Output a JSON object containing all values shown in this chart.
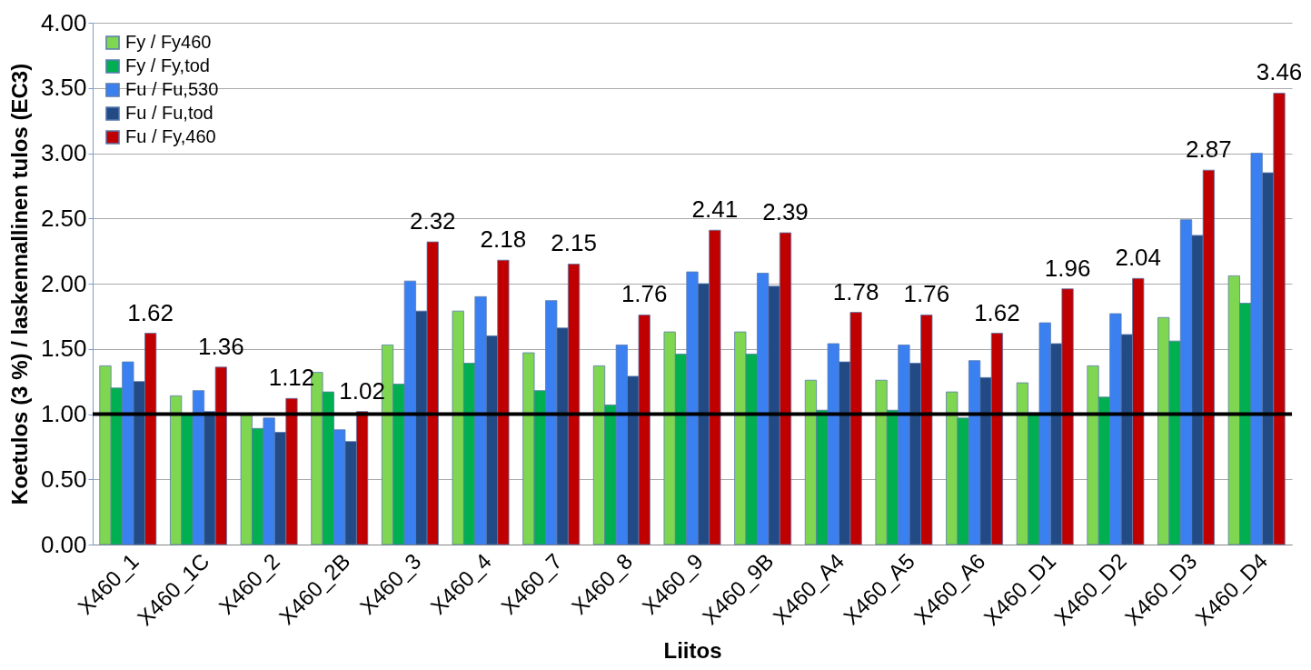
{
  "chart_data": {
    "type": "bar",
    "xlabel": "Liitos",
    "ylabel": "Koetulos (3 %) / laskennallinen tulos (EC3)",
    "categories": [
      "X460_1",
      "X460_1C",
      "X460_2",
      "X460_2B",
      "X460_3",
      "X460_4",
      "X460_7",
      "X460_8",
      "X460_9",
      "X460_9B",
      "X460_A4",
      "X460_A5",
      "X460_A6",
      "X460_D1",
      "X460_D2",
      "X460_D3",
      "X460_D4"
    ],
    "series": [
      {
        "name": "Fy / Fy460",
        "color": "#7fd650",
        "values": [
          1.37,
          1.14,
          1.0,
          1.32,
          1.53,
          1.79,
          1.47,
          1.37,
          1.63,
          1.63,
          1.26,
          1.26,
          1.17,
          1.24,
          1.37,
          1.74,
          2.06
        ]
      },
      {
        "name": "Fy / Fy,tod",
        "color": "#00b050",
        "values": [
          1.2,
          1.0,
          0.89,
          1.17,
          1.23,
          1.39,
          1.18,
          1.07,
          1.46,
          1.46,
          1.03,
          1.03,
          0.97,
          1.01,
          1.13,
          1.56,
          1.85
        ]
      },
      {
        "name": "Fu / Fu,530",
        "color": "#3a80f0",
        "values": [
          1.4,
          1.18,
          0.97,
          0.88,
          2.02,
          1.9,
          1.87,
          1.53,
          2.09,
          2.08,
          1.54,
          1.53,
          1.41,
          1.7,
          1.77,
          2.49,
          3.0
        ]
      },
      {
        "name": "Fu / Fu,tod",
        "color": "#224a85",
        "values": [
          1.25,
          1.02,
          0.86,
          0.79,
          1.79,
          1.6,
          1.66,
          1.29,
          2.0,
          1.98,
          1.4,
          1.39,
          1.28,
          1.54,
          1.61,
          2.37,
          2.85
        ]
      },
      {
        "name": "Fu / Fy,460",
        "color": "#c00000",
        "values": [
          1.62,
          1.36,
          1.12,
          1.02,
          2.32,
          2.18,
          2.15,
          1.76,
          2.41,
          2.39,
          1.78,
          1.76,
          1.62,
          1.96,
          2.04,
          2.87,
          3.46
        ],
        "value_labels": [
          "1.62",
          "1.36",
          "1.12",
          "1.02",
          "2.32",
          "2.18",
          "2.15",
          "1.76",
          "2.41",
          "2.39",
          "1.78",
          "1.76",
          "1.62",
          "1.96",
          "2.04",
          "2.87",
          "3.46"
        ]
      }
    ],
    "ylim": [
      0,
      4
    ],
    "yticks": [
      {
        "value": 0,
        "label": "0.00"
      },
      {
        "value": 0.5,
        "label": "0.50"
      },
      {
        "value": 1,
        "label": "1.00"
      },
      {
        "value": 1.5,
        "label": "1.50"
      },
      {
        "value": 2,
        "label": "2.00"
      },
      {
        "value": 2.5,
        "label": "2.50"
      },
      {
        "value": 3,
        "label": "3.00"
      },
      {
        "value": 3.5,
        "label": "3.50"
      },
      {
        "value": 4,
        "label": "4.00"
      }
    ],
    "ref_lines": [
      {
        "axis": "y",
        "value": 1,
        "color": "#000000"
      }
    ],
    "grid": "y",
    "legend": "top left"
  }
}
